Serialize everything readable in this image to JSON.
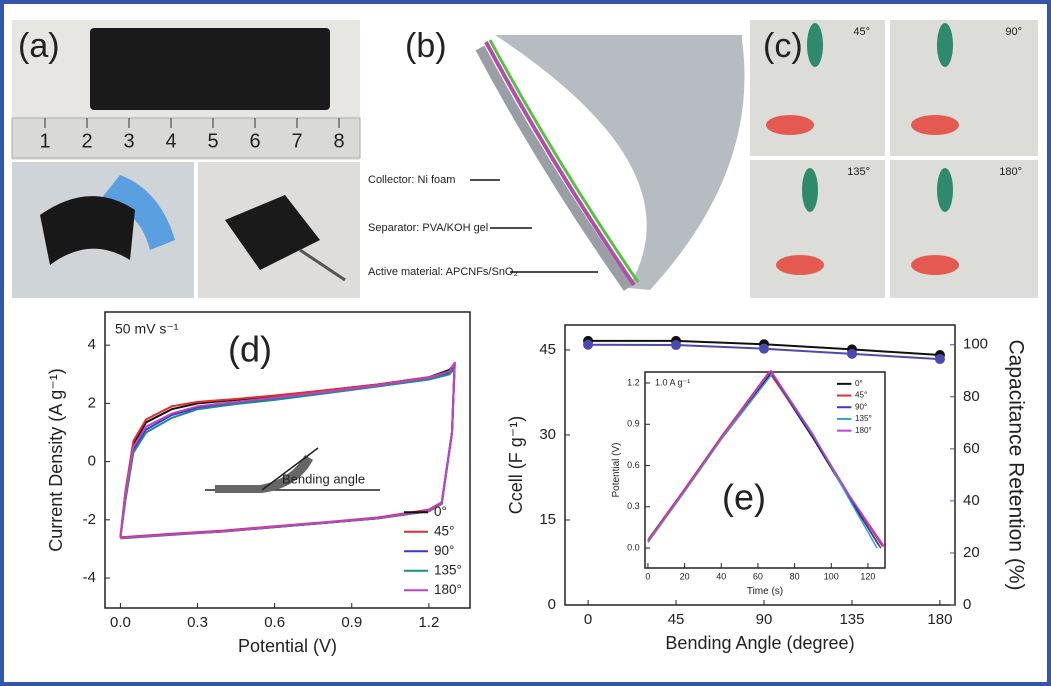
{
  "panels": {
    "a": {
      "label": "(a)",
      "ruler_numbers": [
        "1",
        "2",
        "3",
        "4",
        "5",
        "6",
        "7",
        "8"
      ]
    },
    "b": {
      "label": "(b)",
      "layers": [
        "Collector: Ni foam",
        "Separator: PVA/KOH gel",
        "Active material: APCNFs/SnO₂"
      ]
    },
    "c": {
      "label": "(c)",
      "angles": [
        "45°",
        "90°",
        "135°",
        "180°"
      ]
    }
  },
  "chart_data": [
    {
      "type": "line",
      "panel_label": "(d)",
      "note": "50 mV s⁻¹",
      "inset_label": "Bending angle",
      "xlabel": "Potential (V)",
      "ylabel": "Current Density (A g⁻¹)",
      "x": [
        0,
        0.02,
        0.05,
        0.1,
        0.2,
        0.3,
        0.45,
        0.6,
        0.8,
        1.0,
        1.2,
        1.28,
        1.3,
        1.29,
        1.25,
        1.2,
        1.0,
        0.8,
        0.6,
        0.4,
        0.2,
        0
      ],
      "xlim": [
        -0.06,
        1.36
      ],
      "xticks": [
        {
          "value": 0,
          "label": "0.0"
        },
        {
          "value": 0.3,
          "label": "0.3"
        },
        {
          "value": 0.6,
          "label": "0.6"
        },
        {
          "value": 0.9,
          "label": "0.9"
        },
        {
          "value": 1.2,
          "label": "1.2"
        }
      ],
      "ylim": [
        -5.03,
        5.14
      ],
      "yticks": [
        -4,
        -2,
        0,
        2,
        4
      ],
      "legend": "lower right",
      "series": [
        {
          "name": "0°",
          "color": "#111111",
          "values": [
            -2.6,
            -1.0,
            0.6,
            1.35,
            1.8,
            2.0,
            2.12,
            2.25,
            2.45,
            2.65,
            2.9,
            3.15,
            3.35,
            1.0,
            -1.45,
            -1.7,
            -1.95,
            -2.1,
            -2.25,
            -2.4,
            -2.5,
            -2.62
          ]
        },
        {
          "name": "45°",
          "color": "#e0302a",
          "values": [
            -2.6,
            -1.0,
            0.7,
            1.45,
            1.9,
            2.05,
            2.15,
            2.27,
            2.45,
            2.65,
            2.9,
            3.1,
            3.3,
            1.0,
            -1.4,
            -1.65,
            -1.92,
            -2.08,
            -2.22,
            -2.37,
            -2.48,
            -2.6
          ]
        },
        {
          "name": "90°",
          "color": "#2a3fd0",
          "values": [
            -2.6,
            -1.2,
            0.4,
            1.1,
            1.6,
            1.85,
            2.0,
            2.15,
            2.38,
            2.6,
            2.85,
            3.05,
            3.25,
            1.0,
            -1.45,
            -1.7,
            -1.95,
            -2.1,
            -2.25,
            -2.4,
            -2.5,
            -2.62
          ]
        },
        {
          "name": "135°",
          "color": "#1f8a8a",
          "values": [
            -2.62,
            -1.3,
            0.3,
            1.0,
            1.5,
            1.8,
            1.98,
            2.12,
            2.35,
            2.58,
            2.82,
            3.0,
            3.2,
            1.0,
            -1.45,
            -1.7,
            -1.95,
            -2.1,
            -2.25,
            -2.4,
            -2.52,
            -2.64
          ]
        },
        {
          "name": "180°",
          "color": "#c040c8",
          "values": [
            -2.6,
            -1.1,
            0.5,
            1.2,
            1.65,
            1.9,
            2.05,
            2.2,
            2.4,
            2.62,
            2.88,
            3.1,
            3.4,
            1.0,
            -1.42,
            -1.68,
            -1.94,
            -2.09,
            -2.24,
            -2.39,
            -2.5,
            -2.62
          ]
        }
      ]
    },
    {
      "type": "line",
      "panel_label": "(e)",
      "markers": true,
      "xlabel": "Bending Angle (degree)",
      "ylabel": "Ccell (F g⁻¹)",
      "y2label": "Capacitance Retention (%)",
      "x": [
        0,
        45,
        90,
        135,
        180
      ],
      "xlim": [
        -11.8,
        187.7
      ],
      "xticks": [
        0,
        45,
        90,
        135,
        180
      ],
      "ylim": [
        0,
        49.4
      ],
      "yticks": [
        0,
        15,
        30,
        45
      ],
      "y2lim": [
        0,
        107.6
      ],
      "y2ticks": [
        0,
        20,
        40,
        60,
        80,
        100
      ],
      "y2color": "#4a4ab0",
      "series": [
        {
          "name": "Ccell",
          "color": "#111111",
          "values": [
            46.6,
            46.6,
            46.0,
            45.1,
            44.1
          ]
        },
        {
          "name": "Capacitance Retention",
          "color": "#4a4ab0",
          "axis": "y2",
          "values": [
            100,
            99.9,
            98.5,
            96.5,
            94.5
          ]
        }
      ]
    },
    {
      "type": "line",
      "note": "1.0 A g⁻¹",
      "xlabel": "Time (s)",
      "ylabel": "Potential (V)",
      "xlim": [
        -1.6,
        129.3
      ],
      "xticks": [
        0,
        20,
        40,
        60,
        80,
        100,
        120
      ],
      "ylim": [
        -0.145,
        1.28
      ],
      "yticks": [
        {
          "value": 0,
          "label": "0.0"
        },
        {
          "value": 0.3,
          "label": "0.3"
        },
        {
          "value": 0.6,
          "label": "0.6"
        },
        {
          "value": 0.9,
          "label": "0.9"
        },
        {
          "value": 1.2,
          "label": "1.2"
        }
      ],
      "legend": "upper right",
      "series": [
        {
          "name": "0°",
          "color": "#111111",
          "x": [
            0,
            20,
            40,
            67,
            90,
            110,
            126
          ],
          "values": [
            0.05,
            0.42,
            0.8,
            1.27,
            0.8,
            0.36,
            0.02
          ]
        },
        {
          "name": "45°",
          "color": "#e0302a",
          "x": [
            0,
            20,
            40,
            66,
            90,
            110,
            128
          ],
          "values": [
            0.06,
            0.43,
            0.81,
            1.28,
            0.82,
            0.38,
            0.01
          ]
        },
        {
          "name": "90°",
          "color": "#2a3fd0",
          "x": [
            0,
            20,
            40,
            67,
            90,
            110,
            127
          ],
          "values": [
            0.05,
            0.42,
            0.8,
            1.28,
            0.81,
            0.37,
            0.0
          ]
        },
        {
          "name": "135°",
          "color": "#3aa0c8",
          "x": [
            0,
            20,
            40,
            68,
            90,
            110,
            125
          ],
          "values": [
            0.04,
            0.41,
            0.79,
            1.27,
            0.83,
            0.35,
            0.0
          ]
        },
        {
          "name": "180°",
          "color": "#c040c8",
          "x": [
            0,
            20,
            40,
            67,
            90,
            110,
            129
          ],
          "values": [
            0.05,
            0.42,
            0.8,
            1.29,
            0.82,
            0.38,
            0.01
          ]
        }
      ]
    }
  ]
}
